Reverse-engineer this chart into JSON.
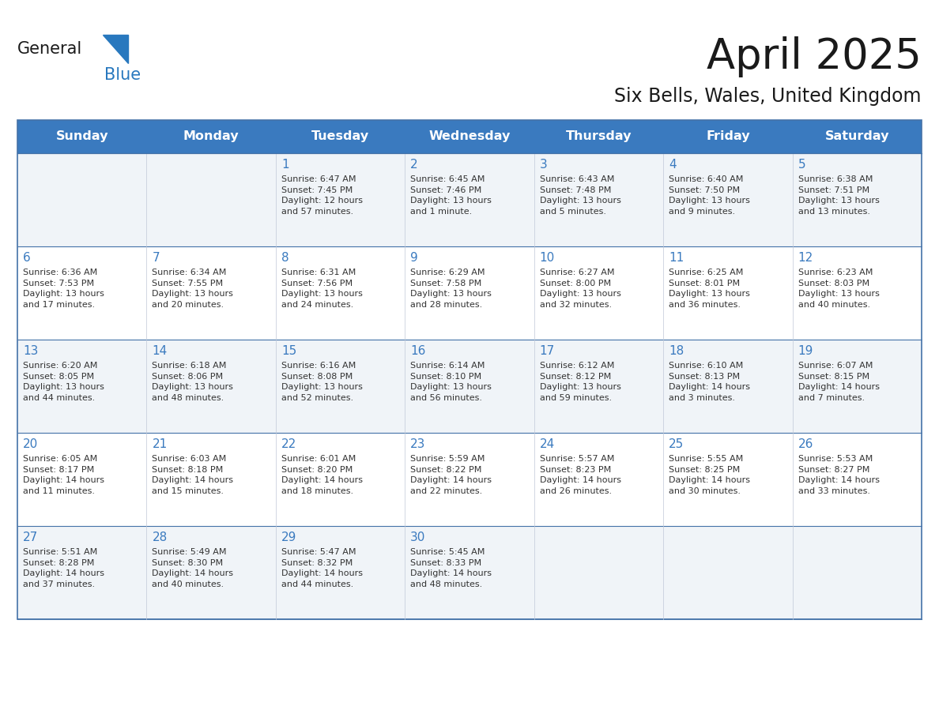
{
  "title": "April 2025",
  "subtitle": "Six Bells, Wales, United Kingdom",
  "header_bg": "#3a7abf",
  "header_text": "#ffffff",
  "cell_bg_white": "#ffffff",
  "cell_bg_gray": "#f0f4f8",
  "border_color": "#4472a8",
  "row_divider_color": "#4472a8",
  "day_names": [
    "Sunday",
    "Monday",
    "Tuesday",
    "Wednesday",
    "Thursday",
    "Friday",
    "Saturday"
  ],
  "title_color": "#1a1a1a",
  "day_number_color": "#3a7abf",
  "cell_text_color": "#333333",
  "logo_general_color": "#1a1a1a",
  "logo_blue_color": "#2878be",
  "calendar": [
    [
      {
        "day": null,
        "info": ""
      },
      {
        "day": null,
        "info": ""
      },
      {
        "day": 1,
        "info": "Sunrise: 6:47 AM\nSunset: 7:45 PM\nDaylight: 12 hours\nand 57 minutes."
      },
      {
        "day": 2,
        "info": "Sunrise: 6:45 AM\nSunset: 7:46 PM\nDaylight: 13 hours\nand 1 minute."
      },
      {
        "day": 3,
        "info": "Sunrise: 6:43 AM\nSunset: 7:48 PM\nDaylight: 13 hours\nand 5 minutes."
      },
      {
        "day": 4,
        "info": "Sunrise: 6:40 AM\nSunset: 7:50 PM\nDaylight: 13 hours\nand 9 minutes."
      },
      {
        "day": 5,
        "info": "Sunrise: 6:38 AM\nSunset: 7:51 PM\nDaylight: 13 hours\nand 13 minutes."
      }
    ],
    [
      {
        "day": 6,
        "info": "Sunrise: 6:36 AM\nSunset: 7:53 PM\nDaylight: 13 hours\nand 17 minutes."
      },
      {
        "day": 7,
        "info": "Sunrise: 6:34 AM\nSunset: 7:55 PM\nDaylight: 13 hours\nand 20 minutes."
      },
      {
        "day": 8,
        "info": "Sunrise: 6:31 AM\nSunset: 7:56 PM\nDaylight: 13 hours\nand 24 minutes."
      },
      {
        "day": 9,
        "info": "Sunrise: 6:29 AM\nSunset: 7:58 PM\nDaylight: 13 hours\nand 28 minutes."
      },
      {
        "day": 10,
        "info": "Sunrise: 6:27 AM\nSunset: 8:00 PM\nDaylight: 13 hours\nand 32 minutes."
      },
      {
        "day": 11,
        "info": "Sunrise: 6:25 AM\nSunset: 8:01 PM\nDaylight: 13 hours\nand 36 minutes."
      },
      {
        "day": 12,
        "info": "Sunrise: 6:23 AM\nSunset: 8:03 PM\nDaylight: 13 hours\nand 40 minutes."
      }
    ],
    [
      {
        "day": 13,
        "info": "Sunrise: 6:20 AM\nSunset: 8:05 PM\nDaylight: 13 hours\nand 44 minutes."
      },
      {
        "day": 14,
        "info": "Sunrise: 6:18 AM\nSunset: 8:06 PM\nDaylight: 13 hours\nand 48 minutes."
      },
      {
        "day": 15,
        "info": "Sunrise: 6:16 AM\nSunset: 8:08 PM\nDaylight: 13 hours\nand 52 minutes."
      },
      {
        "day": 16,
        "info": "Sunrise: 6:14 AM\nSunset: 8:10 PM\nDaylight: 13 hours\nand 56 minutes."
      },
      {
        "day": 17,
        "info": "Sunrise: 6:12 AM\nSunset: 8:12 PM\nDaylight: 13 hours\nand 59 minutes."
      },
      {
        "day": 18,
        "info": "Sunrise: 6:10 AM\nSunset: 8:13 PM\nDaylight: 14 hours\nand 3 minutes."
      },
      {
        "day": 19,
        "info": "Sunrise: 6:07 AM\nSunset: 8:15 PM\nDaylight: 14 hours\nand 7 minutes."
      }
    ],
    [
      {
        "day": 20,
        "info": "Sunrise: 6:05 AM\nSunset: 8:17 PM\nDaylight: 14 hours\nand 11 minutes."
      },
      {
        "day": 21,
        "info": "Sunrise: 6:03 AM\nSunset: 8:18 PM\nDaylight: 14 hours\nand 15 minutes."
      },
      {
        "day": 22,
        "info": "Sunrise: 6:01 AM\nSunset: 8:20 PM\nDaylight: 14 hours\nand 18 minutes."
      },
      {
        "day": 23,
        "info": "Sunrise: 5:59 AM\nSunset: 8:22 PM\nDaylight: 14 hours\nand 22 minutes."
      },
      {
        "day": 24,
        "info": "Sunrise: 5:57 AM\nSunset: 8:23 PM\nDaylight: 14 hours\nand 26 minutes."
      },
      {
        "day": 25,
        "info": "Sunrise: 5:55 AM\nSunset: 8:25 PM\nDaylight: 14 hours\nand 30 minutes."
      },
      {
        "day": 26,
        "info": "Sunrise: 5:53 AM\nSunset: 8:27 PM\nDaylight: 14 hours\nand 33 minutes."
      }
    ],
    [
      {
        "day": 27,
        "info": "Sunrise: 5:51 AM\nSunset: 8:28 PM\nDaylight: 14 hours\nand 37 minutes."
      },
      {
        "day": 28,
        "info": "Sunrise: 5:49 AM\nSunset: 8:30 PM\nDaylight: 14 hours\nand 40 minutes."
      },
      {
        "day": 29,
        "info": "Sunrise: 5:47 AM\nSunset: 8:32 PM\nDaylight: 14 hours\nand 44 minutes."
      },
      {
        "day": 30,
        "info": "Sunrise: 5:45 AM\nSunset: 8:33 PM\nDaylight: 14 hours\nand 48 minutes."
      },
      {
        "day": null,
        "info": ""
      },
      {
        "day": null,
        "info": ""
      },
      {
        "day": null,
        "info": ""
      }
    ]
  ],
  "row_bg_colors": [
    "#f0f4f8",
    "#ffffff",
    "#f0f4f8",
    "#ffffff",
    "#f0f4f8"
  ]
}
